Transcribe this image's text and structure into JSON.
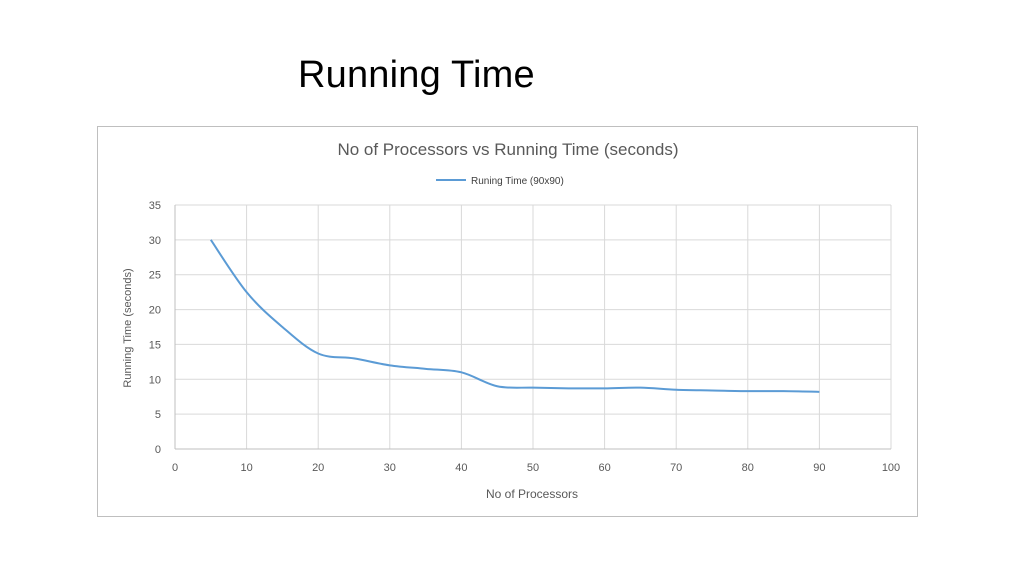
{
  "slide": {
    "title": "Running Time"
  },
  "chart_data": {
    "type": "line",
    "title": "No of Processors vs Running Time (seconds)",
    "xlabel": "No of Processors",
    "ylabel": "Running Time (seconds)",
    "xlim": [
      0,
      100
    ],
    "ylim": [
      0,
      35
    ],
    "x_ticks": [
      0,
      10,
      20,
      30,
      40,
      50,
      60,
      70,
      80,
      90,
      100
    ],
    "y_ticks": [
      0,
      5,
      10,
      15,
      20,
      25,
      30,
      35
    ],
    "grid": true,
    "legend_position": "top",
    "smooth": true,
    "series": [
      {
        "name": "Runing Time (90x90)",
        "color": "#5b9bd5",
        "x": [
          5,
          10,
          15,
          20,
          25,
          30,
          35,
          40,
          45,
          50,
          55,
          60,
          65,
          70,
          75,
          80,
          85,
          90
        ],
        "y": [
          30,
          22.5,
          17.5,
          13.7,
          13.0,
          12.0,
          11.5,
          11.0,
          9.0,
          8.8,
          8.7,
          8.7,
          8.8,
          8.5,
          8.4,
          8.3,
          8.3,
          8.2
        ]
      }
    ]
  }
}
